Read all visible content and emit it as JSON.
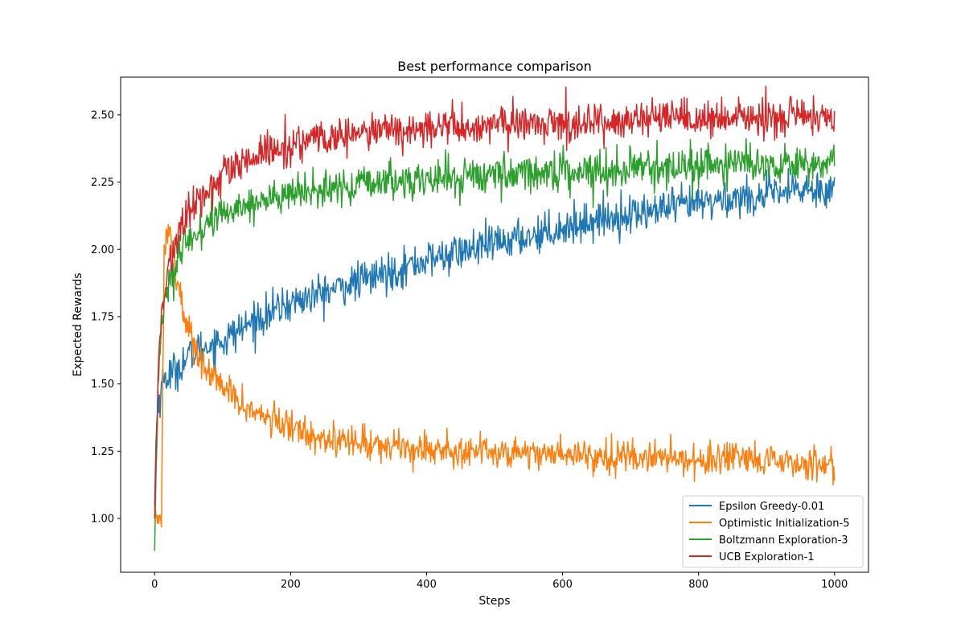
{
  "chart_data": {
    "type": "line",
    "title": "Best performance comparison",
    "xlabel": "Steps",
    "ylabel": "Expected Rewards",
    "xlim": [
      -50,
      1050
    ],
    "ylim": [
      0.8,
      2.64
    ],
    "xticks": [
      0,
      200,
      400,
      600,
      800,
      1000
    ],
    "yticks": [
      1.0,
      1.25,
      1.5,
      1.75,
      2.0,
      2.25,
      2.5
    ],
    "xtick_labels": [
      "0",
      "200",
      "400",
      "600",
      "800",
      "1000"
    ],
    "ytick_labels": [
      "1.00",
      "1.25",
      "1.50",
      "1.75",
      "2.00",
      "2.25",
      "2.50"
    ],
    "grid": false,
    "legend_position": "lower-right",
    "series": [
      {
        "name": "Epsilon Greedy-0.01",
        "color": "#1f77b4",
        "noise": 0.035,
        "points": [
          [
            0,
            1.05
          ],
          [
            2,
            1.28
          ],
          [
            5,
            1.45
          ],
          [
            8,
            1.45
          ],
          [
            10,
            1.48
          ],
          [
            13,
            1.52
          ],
          [
            20,
            1.53
          ],
          [
            30,
            1.55
          ],
          [
            50,
            1.6
          ],
          [
            75,
            1.64
          ],
          [
            100,
            1.66
          ],
          [
            125,
            1.7
          ],
          [
            150,
            1.74
          ],
          [
            175,
            1.77
          ],
          [
            200,
            1.8
          ],
          [
            250,
            1.84
          ],
          [
            300,
            1.88
          ],
          [
            350,
            1.92
          ],
          [
            400,
            1.96
          ],
          [
            450,
            1.99
          ],
          [
            500,
            2.02
          ],
          [
            550,
            2.05
          ],
          [
            600,
            2.08
          ],
          [
            650,
            2.11
          ],
          [
            700,
            2.13
          ],
          [
            750,
            2.15
          ],
          [
            800,
            2.17
          ],
          [
            850,
            2.19
          ],
          [
            900,
            2.2
          ],
          [
            950,
            2.22
          ],
          [
            1000,
            2.23
          ]
        ]
      },
      {
        "name": "Optimistic Initialization-5",
        "color": "#ff7f0e",
        "noise": 0.03,
        "points": [
          [
            0,
            1.05
          ],
          [
            5,
            1.0
          ],
          [
            10,
            1.0
          ],
          [
            14,
            2.0
          ],
          [
            18,
            2.08
          ],
          [
            22,
            2.07
          ],
          [
            26,
            2.0
          ],
          [
            32,
            1.9
          ],
          [
            40,
            1.8
          ],
          [
            50,
            1.7
          ],
          [
            60,
            1.63
          ],
          [
            75,
            1.55
          ],
          [
            100,
            1.49
          ],
          [
            125,
            1.43
          ],
          [
            150,
            1.39
          ],
          [
            175,
            1.36
          ],
          [
            200,
            1.34
          ],
          [
            250,
            1.3
          ],
          [
            300,
            1.28
          ],
          [
            350,
            1.27
          ],
          [
            400,
            1.26
          ],
          [
            450,
            1.25
          ],
          [
            500,
            1.25
          ],
          [
            600,
            1.24
          ],
          [
            700,
            1.23
          ],
          [
            800,
            1.22
          ],
          [
            900,
            1.21
          ],
          [
            1000,
            1.2
          ]
        ]
      },
      {
        "name": "Boltzmann Exploration-3",
        "color": "#2ca02c",
        "noise": 0.035,
        "points": [
          [
            0,
            0.88
          ],
          [
            3,
            1.3
          ],
          [
            6,
            1.55
          ],
          [
            10,
            1.7
          ],
          [
            15,
            1.8
          ],
          [
            20,
            1.87
          ],
          [
            30,
            1.93
          ],
          [
            40,
            1.98
          ],
          [
            50,
            2.03
          ],
          [
            75,
            2.09
          ],
          [
            100,
            2.13
          ],
          [
            125,
            2.16
          ],
          [
            150,
            2.18
          ],
          [
            200,
            2.2
          ],
          [
            250,
            2.22
          ],
          [
            300,
            2.24
          ],
          [
            400,
            2.26
          ],
          [
            500,
            2.28
          ],
          [
            600,
            2.29
          ],
          [
            700,
            2.3
          ],
          [
            800,
            2.31
          ],
          [
            900,
            2.32
          ],
          [
            1000,
            2.32
          ]
        ]
      },
      {
        "name": "UCB Exploration-1",
        "color": "#d62728",
        "noise": 0.035,
        "points": [
          [
            0,
            1.0
          ],
          [
            3,
            1.35
          ],
          [
            6,
            1.6
          ],
          [
            10,
            1.75
          ],
          [
            15,
            1.85
          ],
          [
            20,
            1.92
          ],
          [
            30,
            2.02
          ],
          [
            40,
            2.08
          ],
          [
            50,
            2.13
          ],
          [
            75,
            2.21
          ],
          [
            100,
            2.27
          ],
          [
            125,
            2.31
          ],
          [
            150,
            2.34
          ],
          [
            175,
            2.37
          ],
          [
            200,
            2.39
          ],
          [
            250,
            2.41
          ],
          [
            300,
            2.43
          ],
          [
            350,
            2.44
          ],
          [
            400,
            2.45
          ],
          [
            500,
            2.46
          ],
          [
            600,
            2.47
          ],
          [
            700,
            2.48
          ],
          [
            800,
            2.48
          ],
          [
            900,
            2.49
          ],
          [
            1000,
            2.49
          ]
        ]
      }
    ]
  }
}
